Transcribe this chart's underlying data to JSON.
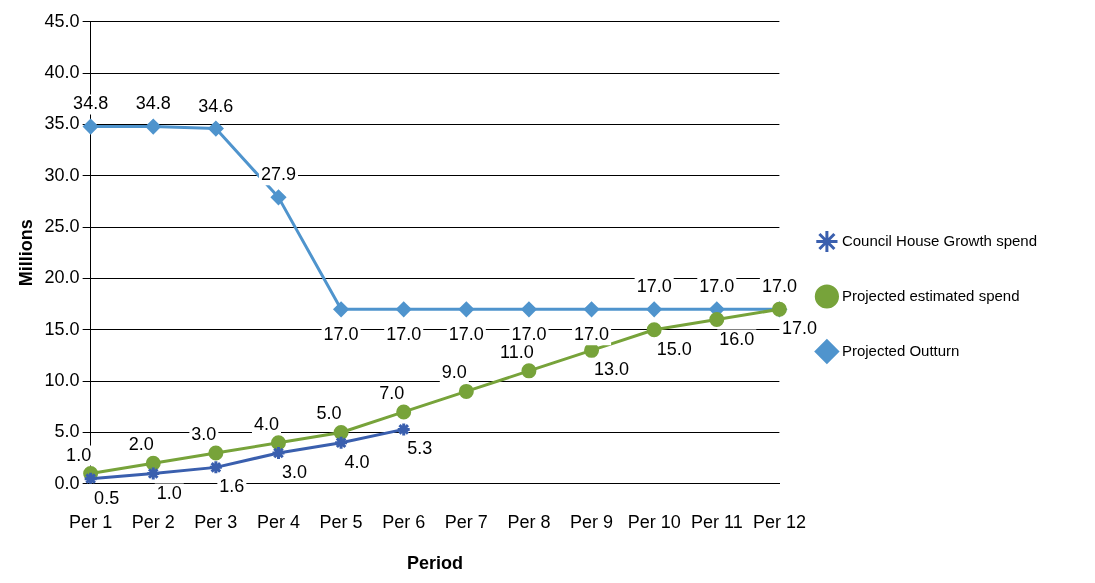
{
  "chart_data": {
    "type": "line",
    "xlabel": "Period",
    "ylabel": "Millions",
    "categories": [
      "Per 1",
      "Per 2",
      "Per 3",
      "Per 4",
      "Per 5",
      "Per 6",
      "Per 7",
      "Per 8",
      "Per 9",
      "Per 10",
      "Per 11",
      "Per 12"
    ],
    "series": [
      {
        "name": "Council House Growth spend",
        "color": "#3a5fae",
        "marker": "cross",
        "values": [
          0.5,
          1.0,
          1.6,
          3.0,
          4.0,
          5.3,
          null,
          null,
          null,
          null,
          null,
          null
        ],
        "value_labels": [
          "0.5",
          "1.0",
          "1.6",
          "3.0",
          "4.0",
          "5.3",
          null,
          null,
          null,
          null,
          null,
          null
        ]
      },
      {
        "name": "Projected estimated spend",
        "color": "#77a33a",
        "marker": "circle",
        "values": [
          1.0,
          2.0,
          3.0,
          4.0,
          5.0,
          7.0,
          9.0,
          11.0,
          13.0,
          15.0,
          16.0,
          17.0
        ],
        "value_labels": [
          "1.0",
          "2.0",
          "3.0",
          "4.0",
          "5.0",
          "7.0",
          "9.0",
          "11.0",
          "13.0",
          "15.0",
          "16.0",
          "17.0"
        ]
      },
      {
        "name": "Projected Outturn",
        "color": "#4f94cd",
        "marker": "diamond",
        "values": [
          34.8,
          34.8,
          34.6,
          27.9,
          17.0,
          17.0,
          17.0,
          17.0,
          17.0,
          17.0,
          17.0,
          17.0
        ],
        "value_labels": [
          "34.8",
          "34.8",
          "34.6",
          "27.9",
          "17.0",
          "17.0",
          "17.0",
          "17.0",
          "17.0",
          "17.0",
          "17.0",
          "17.0"
        ]
      }
    ],
    "ylim": [
      0,
      45
    ],
    "yticks": [
      {
        "value": 0,
        "label": "0.0"
      },
      {
        "value": 5,
        "label": "5.0"
      },
      {
        "value": 10,
        "label": "10.0"
      },
      {
        "value": 15,
        "label": "15.0"
      },
      {
        "value": 20,
        "label": "20.0"
      },
      {
        "value": 25,
        "label": "25.0"
      },
      {
        "value": 30,
        "label": "30.0"
      },
      {
        "value": 35,
        "label": "35.0"
      },
      {
        "value": 40,
        "label": "40.0"
      },
      {
        "value": 45,
        "label": "45.0"
      }
    ],
    "grid": "y",
    "legend": "right"
  }
}
